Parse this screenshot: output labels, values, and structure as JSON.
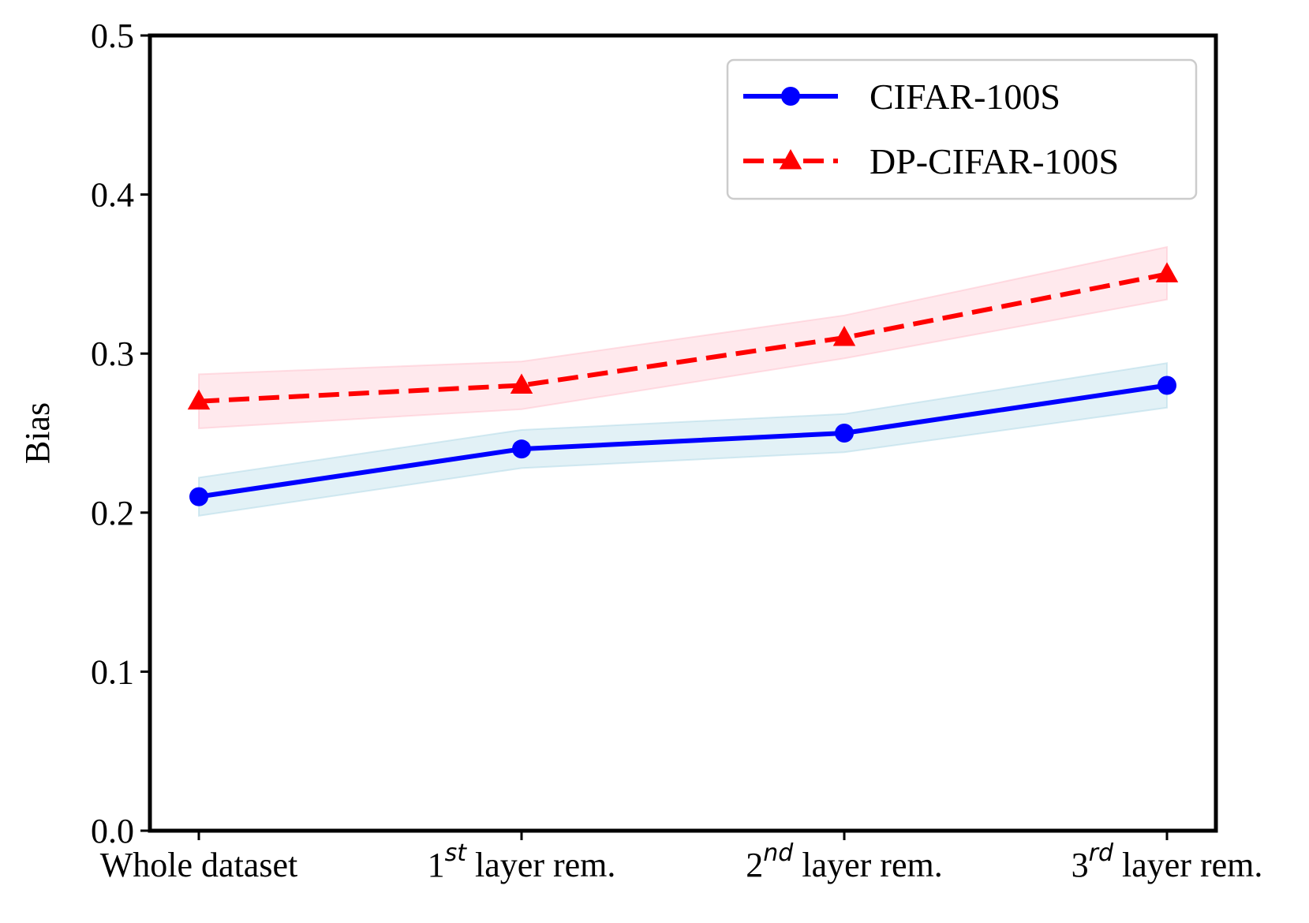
{
  "chart_data": {
    "type": "line",
    "title": "",
    "xlabel": "",
    "ylabel": "Bias",
    "ylim": [
      0.0,
      0.5
    ],
    "yticks": [
      "0.0",
      "0.1",
      "0.2",
      "0.3",
      "0.4",
      "0.5"
    ],
    "ytick_values": [
      0.0,
      0.1,
      0.2,
      0.3,
      0.4,
      0.5
    ],
    "categories": [
      {
        "num": "",
        "sup": "",
        "rest": "Whole dataset"
      },
      {
        "num": "1",
        "sup": "st",
        "rest": " layer rem."
      },
      {
        "num": "2",
        "sup": "nd",
        "rest": " layer rem."
      },
      {
        "num": "3",
        "sup": "rd",
        "rest": " layer rem."
      }
    ],
    "legend_position": "top-right",
    "series": [
      {
        "name": "CIFAR-100S",
        "values": [
          0.21,
          0.24,
          0.25,
          0.28
        ],
        "band_lower": [
          0.198,
          0.228,
          0.238,
          0.266
        ],
        "band_upper": [
          0.222,
          0.252,
          0.262,
          0.294
        ],
        "color": "#0000ff",
        "band_color": "#add8e6",
        "marker": "circle",
        "linestyle": "solid"
      },
      {
        "name": "DP-CIFAR-100S",
        "values": [
          0.27,
          0.28,
          0.31,
          0.35
        ],
        "band_lower": [
          0.253,
          0.265,
          0.297,
          0.334
        ],
        "band_upper": [
          0.287,
          0.295,
          0.324,
          0.367
        ],
        "color": "#ff0000",
        "band_color": "#ffc0cb",
        "marker": "triangle",
        "linestyle": "dashed"
      }
    ]
  }
}
